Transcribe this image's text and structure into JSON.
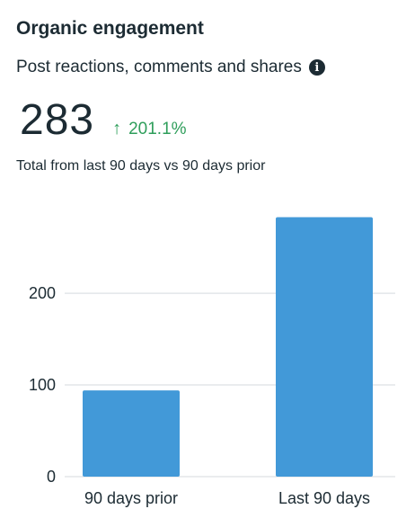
{
  "header": {
    "title": "Organic engagement",
    "subtitle": "Post reactions, comments and shares",
    "info_icon": "info-icon"
  },
  "metric": {
    "value": "283",
    "delta_icon": "arrow-up-icon",
    "delta": "201.1%",
    "caption": "Total from last 90 days vs 90 days prior"
  },
  "colors": {
    "bar": "#4299d8",
    "delta": "#2f9e5b",
    "grid": "#e3e6e9",
    "text": "#1c2b33"
  },
  "chart_data": {
    "type": "bar",
    "categories": [
      "90 days prior",
      "Last 90 days"
    ],
    "values": [
      94,
      283
    ],
    "title": "",
    "xlabel": "",
    "ylabel": "",
    "ylim": [
      0,
      300
    ],
    "yticks": [
      "0",
      "100",
      "200"
    ],
    "grid": true
  }
}
